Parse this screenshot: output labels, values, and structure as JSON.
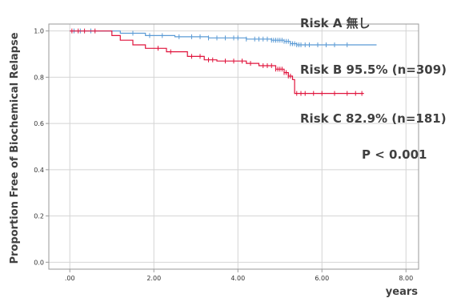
{
  "chart_data": {
    "type": "line",
    "title": "",
    "xlabel": "years",
    "ylabel": "Proportion Free of Biochemical Relapse",
    "xlim": [
      -0.5,
      8.3
    ],
    "ylim": [
      -0.03,
      1.03
    ],
    "x_ticks": [
      {
        "value": 0,
        "label": ".00"
      },
      {
        "value": 2,
        "label": "2.00"
      },
      {
        "value": 4,
        "label": "4.00"
      },
      {
        "value": 6,
        "label": "6.00"
      },
      {
        "value": 8,
        "label": "8.00"
      }
    ],
    "y_ticks": [
      {
        "value": 0,
        "label": "0.0"
      },
      {
        "value": 0.2,
        "label": "0.2"
      },
      {
        "value": 0.4,
        "label": "0.4"
      },
      {
        "value": 0.6,
        "label": "0.6"
      },
      {
        "value": 0.8,
        "label": "0.8"
      },
      {
        "value": 1.0,
        "label": "1.0"
      }
    ],
    "grid": true,
    "series": [
      {
        "name": "",
        "color": "#5b9bd5",
        "step_points": [
          [
            0,
            1.0
          ],
          [
            0.8,
            1.0
          ],
          [
            1.2,
            0.99
          ],
          [
            1.8,
            0.98
          ],
          [
            2.5,
            0.975
          ],
          [
            3.3,
            0.97
          ],
          [
            4.2,
            0.965
          ],
          [
            4.8,
            0.96
          ],
          [
            5.1,
            0.955
          ],
          [
            5.25,
            0.945
          ],
          [
            5.4,
            0.94
          ],
          [
            7.3,
            0.94
          ]
        ],
        "censor_x": [
          0.1,
          0.25,
          0.5,
          1.5,
          1.9,
          2.2,
          2.6,
          2.9,
          3.1,
          3.3,
          3.5,
          3.7,
          3.9,
          4.0,
          4.2,
          4.4,
          4.5,
          4.6,
          4.7,
          4.8,
          4.85,
          4.9,
          4.95,
          5.0,
          5.05,
          5.1,
          5.15,
          5.2,
          5.25,
          5.3,
          5.35,
          5.4,
          5.45,
          5.5,
          5.6,
          5.7,
          5.9,
          6.1,
          6.3,
          6.6
        ]
      },
      {
        "name": "",
        "color": "#e0143c",
        "step_points": [
          [
            0,
            1.0
          ],
          [
            0.8,
            1.0
          ],
          [
            1.0,
            0.98
          ],
          [
            1.2,
            0.96
          ],
          [
            1.5,
            0.94
          ],
          [
            1.8,
            0.925
          ],
          [
            2.3,
            0.91
          ],
          [
            2.8,
            0.89
          ],
          [
            3.2,
            0.875
          ],
          [
            3.5,
            0.87
          ],
          [
            4.2,
            0.86
          ],
          [
            4.5,
            0.85
          ],
          [
            4.9,
            0.835
          ],
          [
            5.1,
            0.82
          ],
          [
            5.2,
            0.805
          ],
          [
            5.3,
            0.79
          ],
          [
            5.35,
            0.73
          ],
          [
            7.0,
            0.73
          ]
        ],
        "censor_x": [
          0.05,
          0.2,
          0.35,
          0.6,
          2.1,
          2.4,
          2.9,
          3.1,
          3.3,
          3.4,
          3.7,
          3.9,
          4.1,
          4.3,
          4.6,
          4.7,
          4.8,
          4.9,
          4.95,
          5.0,
          5.05,
          5.1,
          5.15,
          5.2,
          5.25,
          5.4,
          5.5,
          5.6,
          5.8,
          6.0,
          6.3,
          6.6,
          6.8,
          6.95
        ]
      }
    ],
    "annotations": [
      {
        "text": "Risk A 無し"
      },
      {
        "text": "Risk B 95.5% (n=309)"
      },
      {
        "text": "Risk C 82.9% (n=181)"
      },
      {
        "text": "P < 0.001"
      }
    ]
  }
}
